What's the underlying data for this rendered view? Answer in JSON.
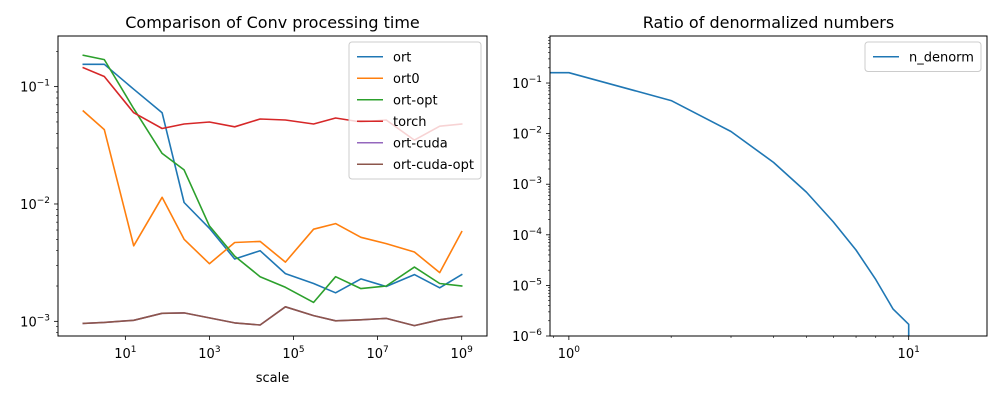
{
  "chart_data": [
    {
      "type": "line",
      "title": "Comparison of Conv processing time",
      "xlabel": "scale",
      "ylabel": "",
      "xscale": "log",
      "yscale": "log",
      "xlim": [
        0.25,
        4000000000
      ],
      "ylim": [
        0.00075,
        0.27
      ],
      "xticks": [
        {
          "value": 10,
          "base": "10",
          "exp": "1"
        },
        {
          "value": 1000,
          "base": "10",
          "exp": "3"
        },
        {
          "value": 100000,
          "base": "10",
          "exp": "5"
        },
        {
          "value": 10000000,
          "base": "10",
          "exp": "7"
        },
        {
          "value": 1000000000,
          "base": "10",
          "exp": "9"
        }
      ],
      "yticks": [
        {
          "value": 0.001,
          "base": "10",
          "exp": "−3"
        },
        {
          "value": 0.01,
          "base": "10",
          "exp": "−2"
        },
        {
          "value": 0.1,
          "base": "10",
          "exp": "−1"
        }
      ],
      "legend_position": "top-right",
      "x": [
        1,
        3.16,
        15.8,
        75,
        250,
        1000,
        4000,
        16000,
        64000,
        300000,
        1000000,
        4000000,
        16000000,
        75000000,
        300000000,
        1000000000
      ],
      "series": [
        {
          "name": "ort",
          "color": "#1f77b4",
          "values": [
            0.155,
            0.155,
            0.095,
            0.06,
            0.0103,
            0.0062,
            0.0034,
            0.004,
            0.00255,
            0.0021,
            0.00175,
            0.0023,
            0.00198,
            0.0025,
            0.00193,
            0.0025
          ]
        },
        {
          "name": "ort0",
          "color": "#ff7f0e",
          "values": [
            0.062,
            0.043,
            0.0044,
            0.0114,
            0.005,
            0.0031,
            0.0047,
            0.0048,
            0.0032,
            0.0061,
            0.0068,
            0.0052,
            0.0046,
            0.0039,
            0.0026,
            0.0058
          ]
        },
        {
          "name": "ort-opt",
          "color": "#2ca02c",
          "values": [
            0.185,
            0.17,
            0.065,
            0.027,
            0.0195,
            0.0065,
            0.0036,
            0.0024,
            0.00195,
            0.00145,
            0.0024,
            0.0019,
            0.002,
            0.0029,
            0.0021,
            0.002
          ]
        },
        {
          "name": "torch",
          "color": "#d62728",
          "values": [
            0.145,
            0.122,
            0.06,
            0.044,
            0.048,
            0.05,
            0.0455,
            0.053,
            0.052,
            0.048,
            0.054,
            0.05,
            0.052,
            0.035,
            0.046,
            0.048
          ]
        },
        {
          "name": "ort-cuda",
          "color": "#9467bd",
          "values": [
            0.00096,
            0.00098,
            0.00102,
            0.00117,
            0.00118,
            0.00107,
            0.00097,
            0.00093,
            0.00133,
            0.00112,
            0.00101,
            0.00103,
            0.00106,
            0.00092,
            0.00103,
            0.0011
          ]
        },
        {
          "name": "ort-cuda-opt",
          "color": "#8c564b",
          "values": [
            0.00096,
            0.00098,
            0.00102,
            0.00117,
            0.00118,
            0.00107,
            0.00097,
            0.00093,
            0.00133,
            0.00112,
            0.00101,
            0.00103,
            0.00106,
            0.00092,
            0.00103,
            0.0011
          ]
        }
      ]
    },
    {
      "type": "line",
      "title": "Ratio of denormalized numbers",
      "xlabel": "",
      "ylabel": "",
      "xscale": "log",
      "yscale": "log",
      "xlim": [
        0.88,
        17
      ],
      "ylim": [
        1e-06,
        0.85
      ],
      "xticks": [
        {
          "value": 1,
          "base": "10",
          "exp": "0"
        },
        {
          "value": 10,
          "base": "10",
          "exp": "1"
        }
      ],
      "yticks": [
        {
          "value": 1e-06,
          "base": "10",
          "exp": "−6"
        },
        {
          "value": 1e-05,
          "base": "10",
          "exp": "−5"
        },
        {
          "value": 0.0001,
          "base": "10",
          "exp": "−4"
        },
        {
          "value": 0.001,
          "base": "10",
          "exp": "−3"
        },
        {
          "value": 0.01,
          "base": "10",
          "exp": "−2"
        },
        {
          "value": 0.1,
          "base": "10",
          "exp": "−1"
        }
      ],
      "legend_position": "top-right",
      "x": [
        0.88,
        1,
        2,
        3,
        4,
        5,
        6,
        7,
        8,
        9,
        10,
        10
      ],
      "series": [
        {
          "name": "n_denorm",
          "color": "#1f77b4",
          "values": [
            0.16,
            0.16,
            0.045,
            0.011,
            0.0027,
            0.0007,
            0.00018,
            5e-05,
            1.3e-05,
            3.4e-06,
            1.7e-06,
            1e-06
          ]
        }
      ]
    }
  ]
}
